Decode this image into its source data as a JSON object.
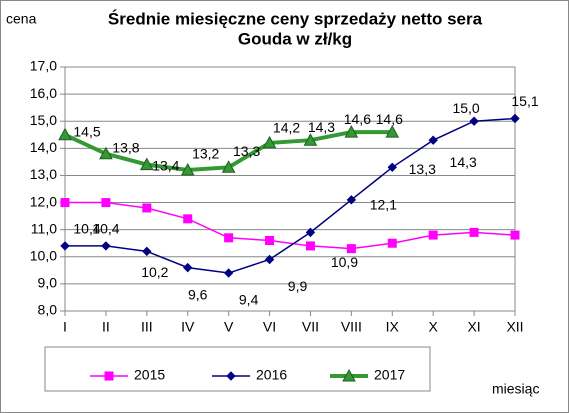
{
  "chart_data": {
    "type": "line",
    "title": [
      "Średnie miesięczne ceny sprzedaży netto sera",
      "Gouda w zł/kg"
    ],
    "y_label": "cena",
    "x_label": "miesiąc",
    "categories": [
      "I",
      "II",
      "III",
      "IV",
      "V",
      "VI",
      "VII",
      "VIII",
      "IX",
      "X",
      "XI",
      "XII"
    ],
    "series": [
      {
        "name": "2015",
        "color": "#ff00ff",
        "marker": "square",
        "values": [
          12.0,
          12.0,
          11.8,
          11.4,
          10.7,
          10.6,
          10.4,
          10.3,
          10.5,
          10.8,
          10.9,
          10.8
        ]
      },
      {
        "name": "2016",
        "color": "#000080",
        "marker": "diamond",
        "values": [
          10.4,
          10.4,
          10.2,
          9.6,
          9.4,
          9.9,
          10.9,
          12.1,
          13.3,
          14.3,
          15.0,
          15.1
        ],
        "value_labels": [
          "10,4",
          "10,4",
          "10,2",
          "9,6",
          "9,4",
          "9,9",
          "10,9",
          "12,1",
          "13,3",
          "14,3",
          "15,0",
          "15,1"
        ]
      },
      {
        "name": "2017",
        "color": "#339933",
        "marker": "triangle",
        "values": [
          14.5,
          13.8,
          13.4,
          13.2,
          13.3,
          14.2,
          14.3,
          14.6,
          14.6,
          null,
          null,
          null
        ],
        "value_labels": [
          "14,5",
          "13,8",
          "13,4",
          "13,2",
          "13,3",
          "14,2",
          "14,3",
          "14,6",
          "14,6",
          null,
          null,
          null
        ]
      }
    ],
    "ylim": [
      8.0,
      17.0
    ],
    "yticks": [
      {
        "value": 8,
        "label": "8,0"
      },
      {
        "value": 9,
        "label": "9,0"
      },
      {
        "value": 10,
        "label": "10,0"
      },
      {
        "value": 11,
        "label": "11,0"
      },
      {
        "value": 12,
        "label": "12,0"
      },
      {
        "value": 13,
        "label": "13,0"
      },
      {
        "value": 14,
        "label": "14,0"
      },
      {
        "value": 15,
        "label": "15,0"
      },
      {
        "value": 16,
        "label": "16,0"
      },
      {
        "value": 17,
        "label": "17,0"
      }
    ],
    "grid": true,
    "legend": "bottom"
  }
}
